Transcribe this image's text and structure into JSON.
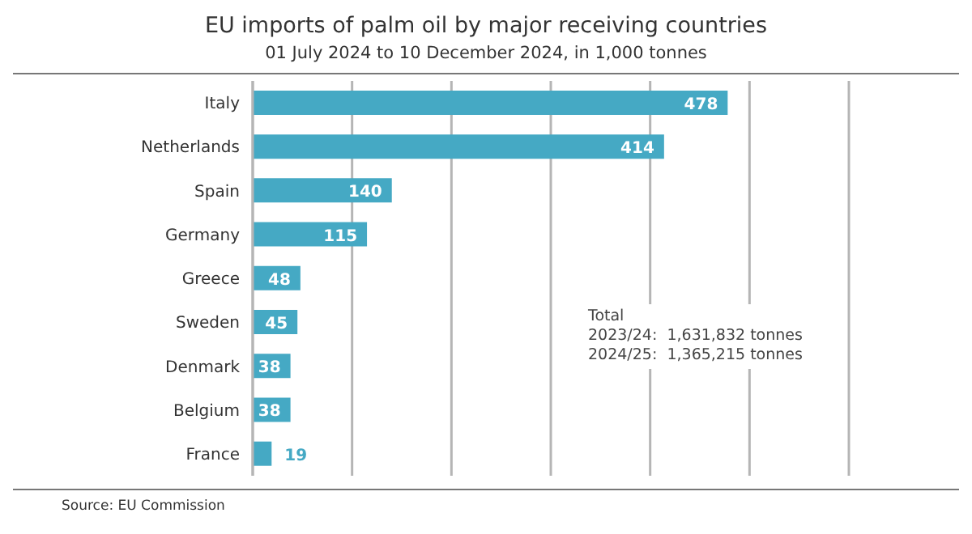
{
  "chart_data": {
    "type": "bar",
    "orientation": "horizontal",
    "title": "EU imports of palm oil by major receiving countries",
    "subtitle": "01 July 2024 to 10 December 2024, in 1,000 tonnes",
    "categories": [
      "Italy",
      "Netherlands",
      "Spain",
      "Germany",
      "Greece",
      "Sweden",
      "Denmark",
      "Belgium",
      "France"
    ],
    "values": [
      478,
      414,
      140,
      115,
      48,
      45,
      38,
      38,
      19
    ],
    "color": "#45a9c4",
    "xlim": [
      0,
      600
    ],
    "xticks": [
      {
        "value": 0,
        "label": null
      },
      {
        "value": 100,
        "label": null
      },
      {
        "value": 200,
        "label": null
      },
      {
        "value": 300,
        "label": null
      },
      {
        "value": 400,
        "label": null
      },
      {
        "value": 500,
        "label": null
      },
      {
        "value": 600,
        "label": null
      }
    ],
    "tick_labels": "y",
    "grid": "x",
    "data_labels": true,
    "annotations": [
      "Total",
      "2023/24:  1,631,832 tonnes",
      "2024/25:  1,365,215 tonnes",
      "Source: EU Commission"
    ]
  }
}
